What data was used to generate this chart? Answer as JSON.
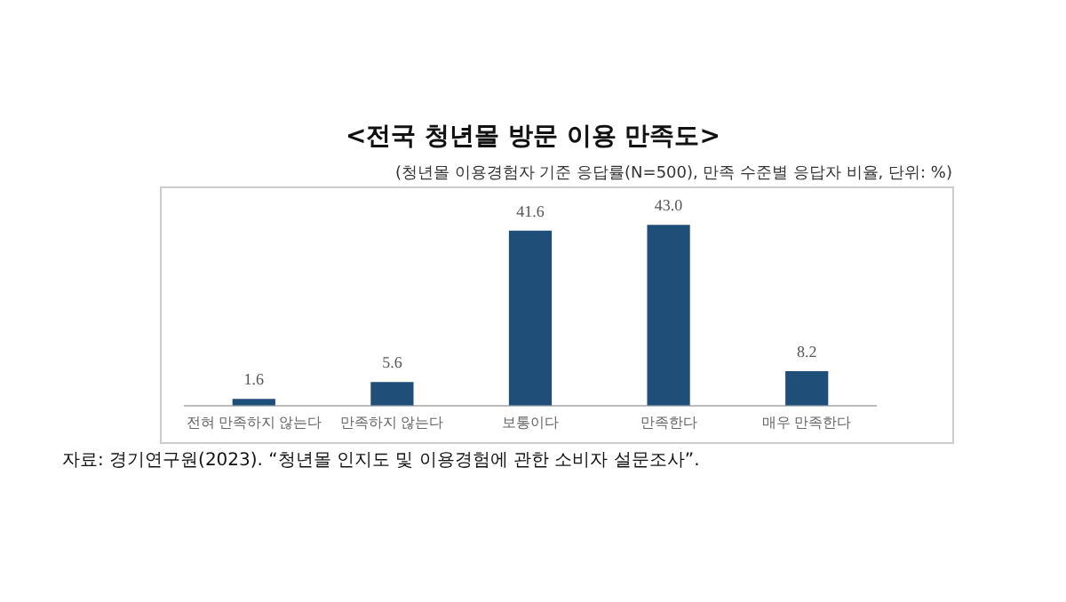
{
  "chart_data": {
    "type": "bar",
    "title": "<전국 청년몰 방문 이용 만족도>",
    "subtitle": "(청년몰 이용경험자 기준 응답률(N=500), 만족 수준별 응답자 비율, 단위: %)",
    "categories": [
      "전혀 만족하지 않는다",
      "만족하지 않는다",
      "보통이다",
      "만족한다",
      "매우 만족한다"
    ],
    "values": [
      1.6,
      5.6,
      41.6,
      43.0,
      8.2
    ],
    "value_labels": [
      "1.6",
      "5.6",
      "41.6",
      "43.0",
      "8.2"
    ],
    "color": "#1f4e79",
    "grid": false,
    "legend": false,
    "tick_labels": "x",
    "annotations": [
      "자료: 경기연구원(2023). “청년몰 인지도 및 이용경험에 관한 소비자 설문조사”."
    ]
  }
}
